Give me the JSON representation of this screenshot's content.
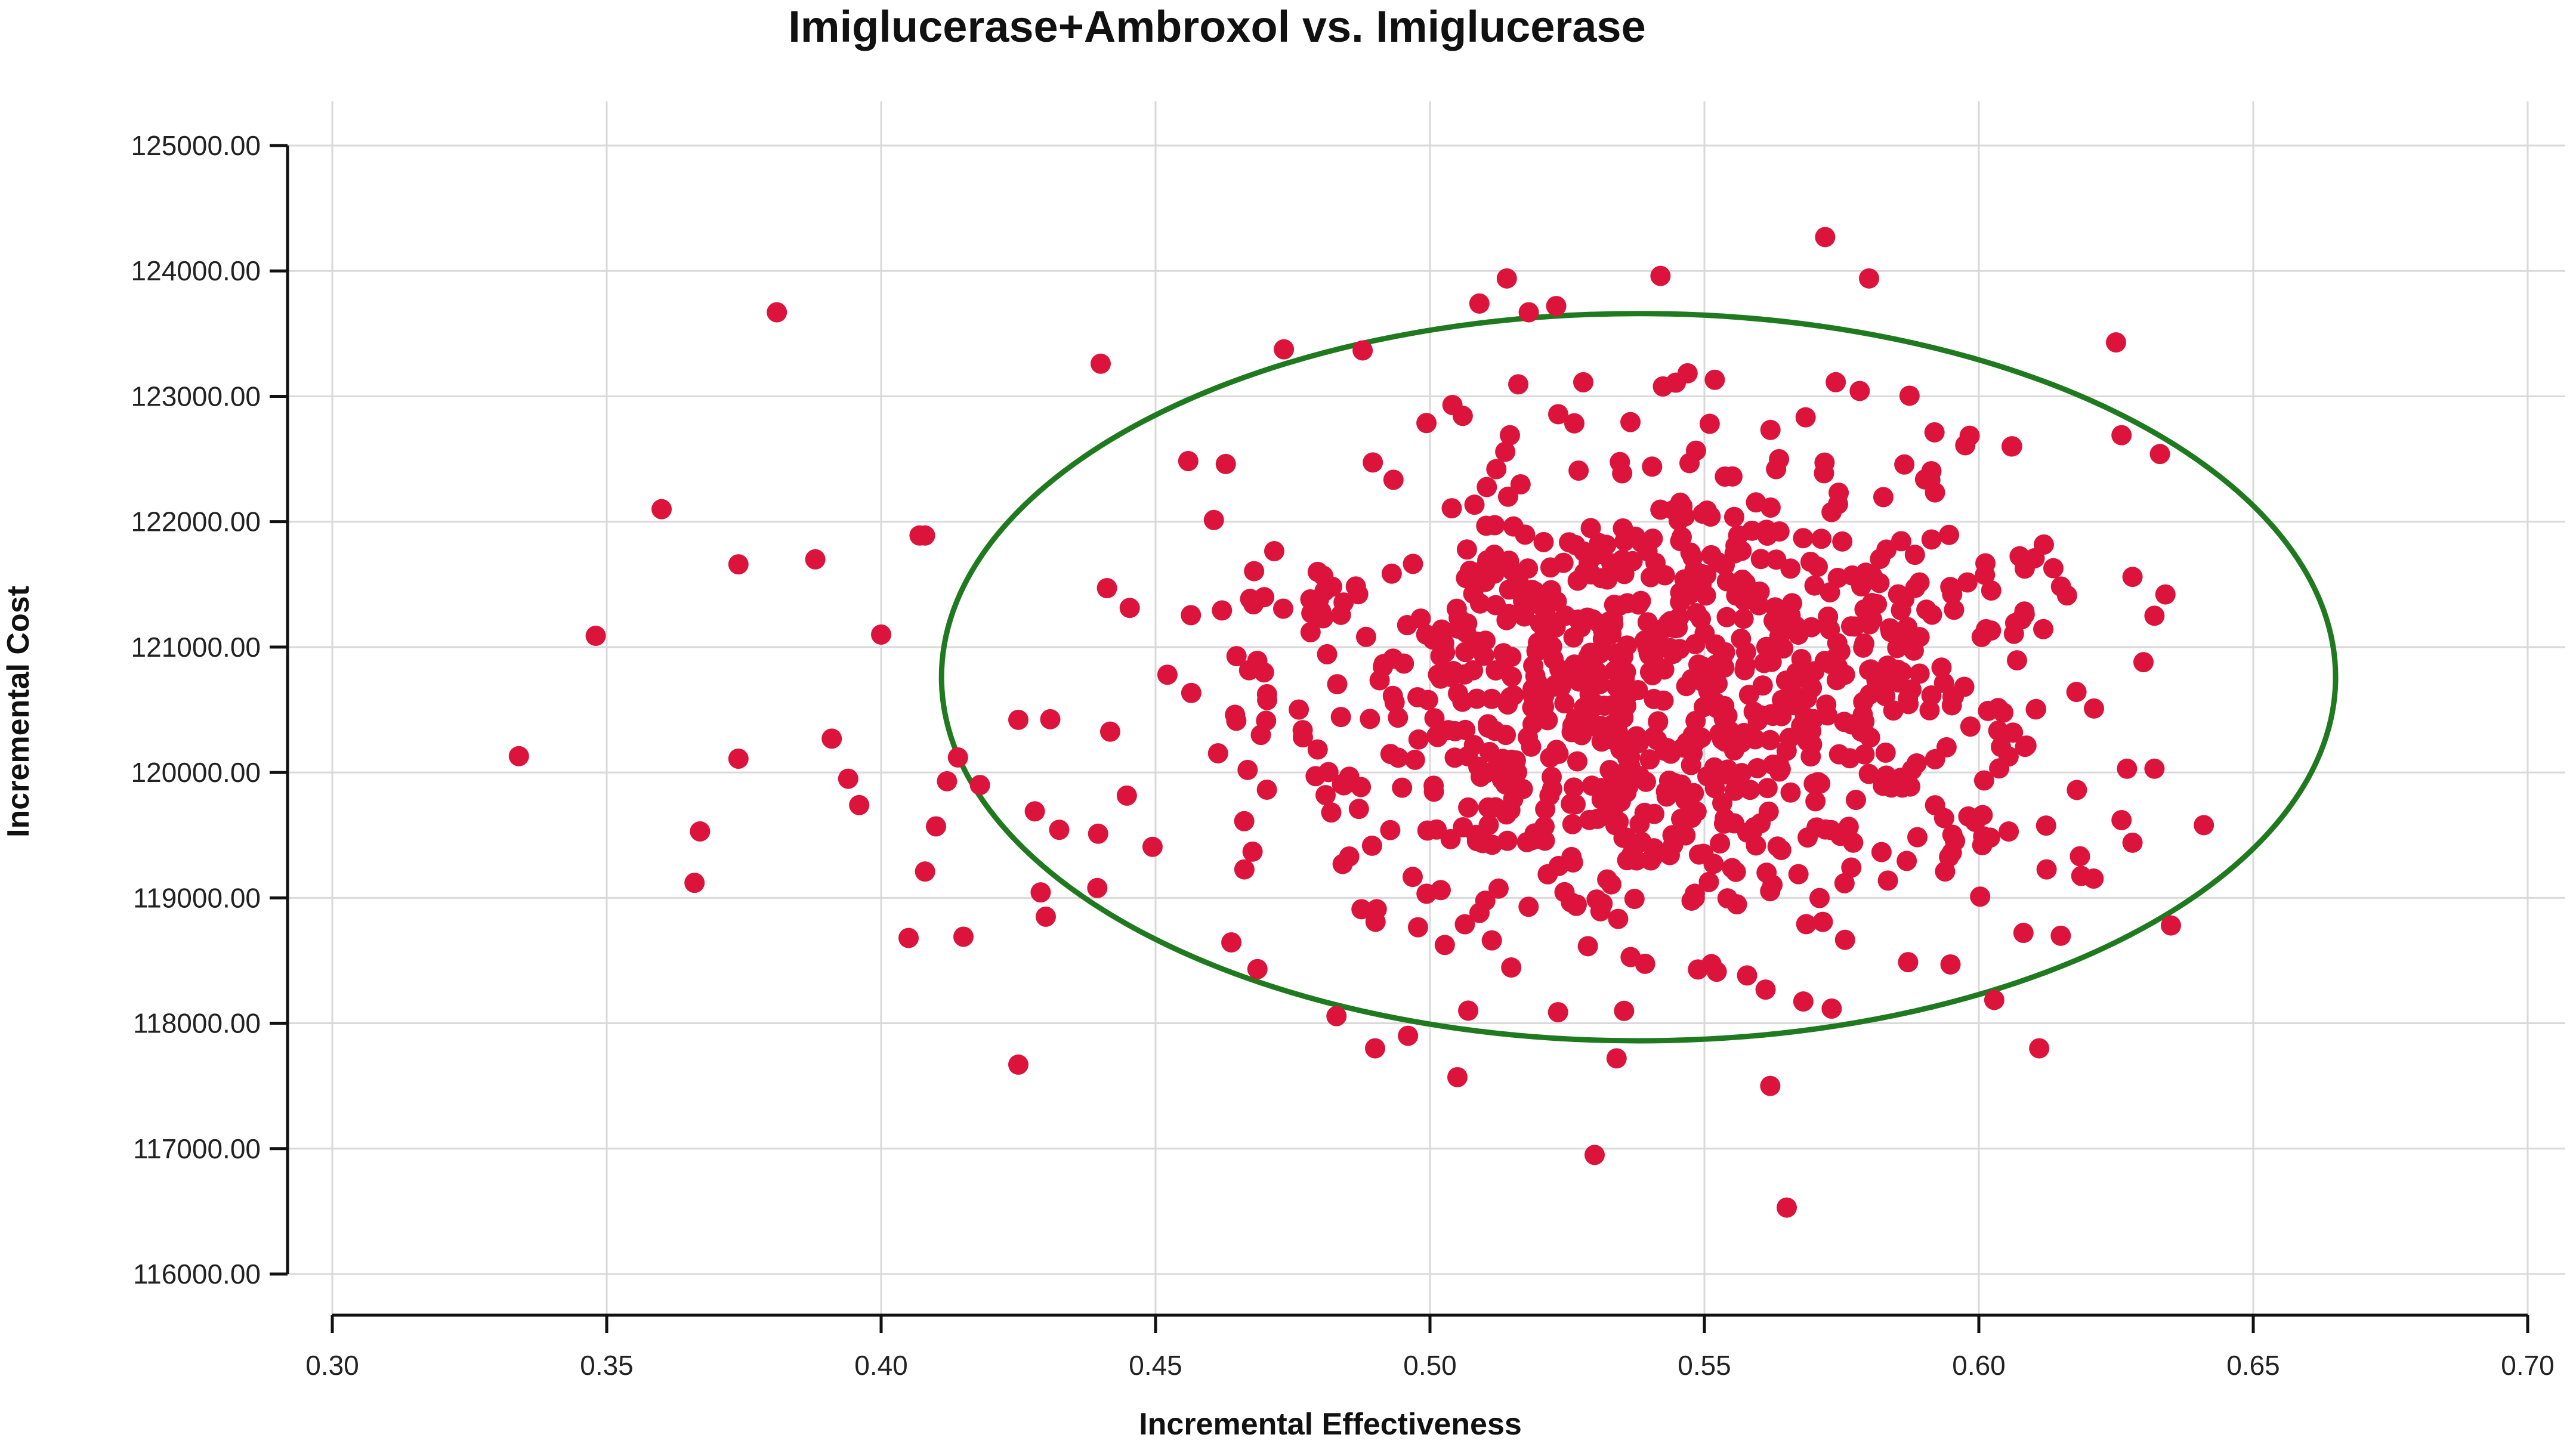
{
  "chart_data": {
    "type": "scatter",
    "title": "Imiglucerase+Ambroxol vs. Imiglucerase",
    "xlabel": "Incremental Effectiveness",
    "ylabel": "Incremental Cost",
    "xlim": [
      0.3,
      0.7
    ],
    "ylim": [
      116000,
      125000
    ],
    "x_ticks": [
      "0.30",
      "0.35",
      "0.40",
      "0.45",
      "0.50",
      "0.55",
      "0.60",
      "0.65",
      "0.70"
    ],
    "y_ticks": [
      "116000.00",
      "117000.00",
      "118000.00",
      "119000.00",
      "120000.00",
      "121000.00",
      "122000.00",
      "123000.00",
      "124000.00",
      "125000.00"
    ],
    "grid": true,
    "legend": "none",
    "point_color": "#dc143c",
    "ellipse_color": "#1f7a1f",
    "confidence_ellipse": {
      "center": [
        0.538,
        120760
      ],
      "x_radius": 0.127,
      "y_radius": 2900
    },
    "outliers": [
      [
        0.334,
        120130
      ],
      [
        0.348,
        121090
      ],
      [
        0.36,
        122100
      ],
      [
        0.366,
        119120
      ],
      [
        0.367,
        119530
      ],
      [
        0.374,
        121660
      ],
      [
        0.374,
        120110
      ],
      [
        0.381,
        123670
      ],
      [
        0.388,
        121700
      ],
      [
        0.391,
        120270
      ],
      [
        0.394,
        119950
      ],
      [
        0.396,
        119740
      ],
      [
        0.4,
        121100
      ],
      [
        0.405,
        118680
      ],
      [
        0.407,
        121890
      ],
      [
        0.408,
        121890
      ],
      [
        0.408,
        119210
      ],
      [
        0.41,
        119570
      ],
      [
        0.412,
        119930
      ],
      [
        0.414,
        120120
      ],
      [
        0.415,
        118690
      ],
      [
        0.418,
        119900
      ],
      [
        0.425,
        120420
      ],
      [
        0.425,
        117670
      ],
      [
        0.428,
        119690
      ],
      [
        0.43,
        118850
      ],
      [
        0.44,
        123260
      ],
      [
        0.49,
        117800
      ],
      [
        0.496,
        117900
      ],
      [
        0.505,
        117570
      ],
      [
        0.53,
        116950
      ],
      [
        0.534,
        117720
      ],
      [
        0.562,
        117500
      ],
      [
        0.565,
        116530
      ],
      [
        0.572,
        124270
      ],
      [
        0.611,
        117800
      ],
      [
        0.625,
        123430
      ],
      [
        0.635,
        118780
      ],
      [
        0.641,
        119580
      ],
      [
        0.514,
        123940
      ],
      [
        0.542,
        123960
      ],
      [
        0.58,
        123940
      ],
      [
        0.509,
        123740
      ],
      [
        0.518,
        123670
      ],
      [
        0.523,
        123720
      ],
      [
        0.633,
        122540
      ],
      [
        0.626,
        122690
      ],
      [
        0.628,
        121560
      ],
      [
        0.63,
        120880
      ],
      [
        0.627,
        120030
      ],
      [
        0.628,
        119440
      ],
      [
        0.632,
        120030
      ],
      [
        0.632,
        121250
      ],
      [
        0.634,
        121420
      ],
      [
        0.626,
        119620
      ]
    ],
    "cloud": {
      "count": 930,
      "seed": 20240,
      "x_mean": 0.543,
      "x_sd": 0.04,
      "y_mean": 120600,
      "y_sd": 1020,
      "x_range": [
        0.425,
        0.622
      ],
      "y_range": [
        118000,
        123400
      ]
    }
  }
}
